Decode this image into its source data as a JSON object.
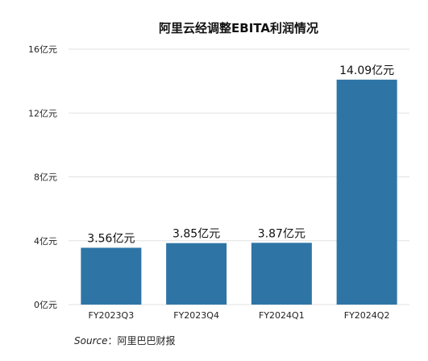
{
  "chart_data": {
    "type": "bar",
    "title": "阿里云经调整EBITA利润情况",
    "categories": [
      "FY2023Q3",
      "FY2023Q4",
      "FY2024Q1",
      "FY2024Q2"
    ],
    "values": [
      3.56,
      3.85,
      3.87,
      14.09
    ],
    "data_labels": [
      "3.56亿元",
      "3.85亿元",
      "3.87亿元",
      "14.09亿元"
    ],
    "y_ticks": [
      0,
      4,
      8,
      12,
      16
    ],
    "y_tick_labels": [
      "0亿元",
      "4亿元",
      "8亿元",
      "12亿元",
      "16亿元"
    ],
    "ylim": [
      0,
      16
    ],
    "grid": true,
    "bar_color": "#2e75a6",
    "grid_color": "#e2e2e2"
  },
  "source": {
    "label": "Source",
    "separator": "：",
    "value": "阿里巴巴财报"
  }
}
